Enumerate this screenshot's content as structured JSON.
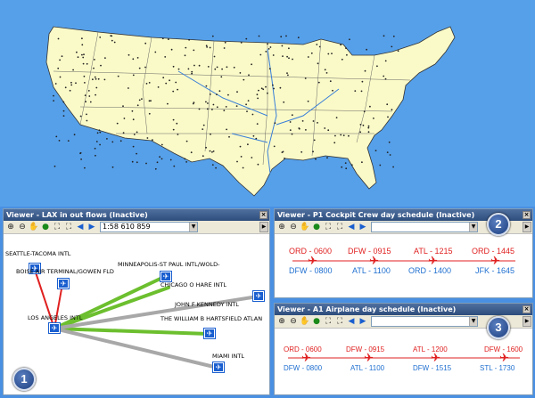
{
  "viewers": {
    "lax": {
      "title": "Viewer - LAX in out flows (Inactive)",
      "scale_value": "1:58 610 859",
      "airports": [
        "SEATTLE-TACOMA INTL",
        "BOISE AIR TERMINAL/GOWEN FLD",
        "MINNEAPOLIS-ST PAUL INTL/WOLD-",
        "CHICAGO O HARE INTL",
        "JOHN F KENNEDY INTL",
        "LOS ANGELES INTL",
        "THE WILLIAM B HARTSFIELD ATLAN",
        "MIAMI INTL"
      ]
    },
    "crew": {
      "title": "Viewer - P1 Cockpit Crew day schedule (Inactive)",
      "flights": [
        {
          "dep": "ORD - 0600",
          "arr": "DFW - 0800"
        },
        {
          "dep": "DFW - 0915",
          "arr": "ATL - 1100"
        },
        {
          "dep": "ATL - 1215",
          "arr": "ORD - 1400"
        },
        {
          "dep": "ORD - 1445",
          "arr": "JFK - 1645"
        }
      ]
    },
    "airplane": {
      "title": "Viewer - A1 Airplane day schedule (Inactive)",
      "flights": [
        {
          "dep": "ORD - 0600",
          "arr": "DFW - 0800"
        },
        {
          "dep": "DFW - 0915",
          "arr": "ATL - 1100"
        },
        {
          "dep": "ATL - 1200",
          "arr": "DFW - 1515"
        },
        {
          "dep": "DFW - 1600",
          "arr": "STL - 1730"
        }
      ]
    }
  },
  "badges": [
    "1",
    "2",
    "3"
  ],
  "colors": {
    "map_land": "#fafac8",
    "water": "#56a0ea",
    "flow_green": "#6cbf2e",
    "flow_gray": "#a8a8a8",
    "flow_red": "#e02020",
    "schedule_red": "#e02020",
    "schedule_blue": "#2070d0"
  },
  "icons": [
    "zoom-in-icon",
    "zoom-out-icon",
    "pan-hand-icon",
    "globe-icon",
    "full-extent-icon",
    "fixed-zoom-icon",
    "back-arrow-icon",
    "forward-arrow-icon",
    "airplane-icon",
    "airport-icon",
    "close-icon"
  ]
}
